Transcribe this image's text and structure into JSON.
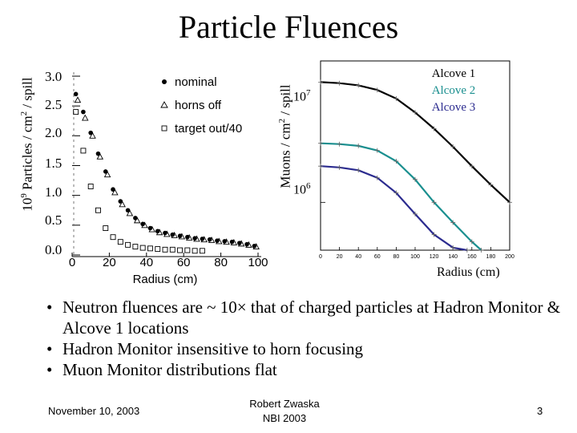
{
  "slide": {
    "title": "Particle Fluences",
    "bullets": [
      "Neutron fluences are ~ 10× that of charged particles at Hadron Monitor & Alcove 1 locations",
      "Hadron Monitor insensitive to horn focusing",
      "Muon Monitor distributions flat"
    ],
    "footer": {
      "date": "November 10, 2003",
      "author_line1": "Robert Zwaska",
      "author_line2": "NBI 2003",
      "page": "3"
    }
  },
  "chart_data": [
    {
      "type": "scatter",
      "ylabel_main": "10",
      "ylabel_sup1": "9",
      "ylabel_mid": " Particles / cm",
      "ylabel_sup2": "2",
      "ylabel_end": " / spill",
      "xlabel": "Radius (cm)",
      "xlim": [
        0,
        100
      ],
      "ylim": [
        0,
        3.0
      ],
      "xticks": [
        "0",
        "20",
        "40",
        "60",
        "80",
        "100"
      ],
      "yticks": [
        "0.0",
        "0.5",
        "1.0",
        "1.5",
        "2.0",
        "2.5",
        "3.0"
      ],
      "legend_position": "top-right",
      "series": [
        {
          "name": "nominal",
          "marker": "filled-circle",
          "x": [
            2,
            6,
            10,
            14,
            18,
            22,
            26,
            30,
            34,
            38,
            42,
            46,
            50,
            54,
            58,
            62,
            66,
            70,
            74,
            78,
            82,
            86,
            90,
            94,
            98
          ],
          "y": [
            2.7,
            2.4,
            2.05,
            1.7,
            1.4,
            1.1,
            0.9,
            0.75,
            0.62,
            0.52,
            0.45,
            0.4,
            0.37,
            0.34,
            0.32,
            0.3,
            0.28,
            0.27,
            0.26,
            0.24,
            0.23,
            0.22,
            0.2,
            0.18,
            0.15
          ]
        },
        {
          "name": "horns off",
          "marker": "open-triangle",
          "x": [
            3,
            7,
            11,
            15,
            19,
            23,
            27,
            31,
            35,
            39,
            43,
            47,
            51,
            55,
            59,
            63,
            67,
            71,
            75,
            79,
            83,
            87,
            91,
            95,
            99
          ],
          "y": [
            2.6,
            2.3,
            2.0,
            1.65,
            1.35,
            1.05,
            0.85,
            0.7,
            0.58,
            0.5,
            0.43,
            0.38,
            0.35,
            0.33,
            0.31,
            0.29,
            0.27,
            0.26,
            0.25,
            0.23,
            0.22,
            0.21,
            0.19,
            0.17,
            0.14
          ]
        },
        {
          "name": "target out/40",
          "marker": "open-square",
          "x": [
            2,
            6,
            10,
            14,
            18,
            22,
            26,
            30,
            34,
            38,
            42,
            46,
            50,
            54,
            58,
            62,
            66,
            70
          ],
          "y": [
            2.4,
            1.75,
            1.15,
            0.75,
            0.45,
            0.3,
            0.22,
            0.17,
            0.14,
            0.12,
            0.11,
            0.1,
            0.09,
            0.09,
            0.08,
            0.08,
            0.07,
            0.07
          ]
        }
      ]
    },
    {
      "type": "line",
      "ylabel_main": "Muons / cm",
      "ylabel_sup": "2",
      "ylabel_end": " / spill",
      "xlabel": "Radius (cm)",
      "xlim": [
        0,
        200
      ],
      "ylim_log": [
        400000,
        15000000
      ],
      "log_y": true,
      "xticks": [
        "0",
        "20",
        "40",
        "60",
        "80",
        "100",
        "120",
        "140",
        "160",
        "180",
        "200"
      ],
      "yticks": [
        {
          "base": "10",
          "exp": "7",
          "value": 10000000
        },
        {
          "base": "10",
          "exp": "6",
          "value": 1000000
        }
      ],
      "legend_position": "top-right",
      "series": [
        {
          "name": "Alcove 1",
          "color": "#000000",
          "x": [
            0,
            20,
            40,
            60,
            80,
            100,
            120,
            140,
            160,
            180,
            200
          ],
          "y": [
            10000000,
            9800000,
            9400000,
            8600000,
            7300000,
            5600000,
            4100000,
            2900000,
            2000000,
            1400000,
            1000000
          ]
        },
        {
          "name": "Alcove 2",
          "color": "#1a8f8f",
          "x": [
            0,
            20,
            40,
            60,
            80,
            100,
            120,
            140,
            160,
            170
          ],
          "y": [
            3100000,
            3050000,
            2950000,
            2700000,
            2200000,
            1550000,
            1000000,
            680000,
            470000,
            400000
          ]
        },
        {
          "name": "Alcove 3",
          "color": "#2b2b8f",
          "x": [
            0,
            20,
            40,
            60,
            80,
            100,
            120,
            140,
            155
          ],
          "y": [
            2000000,
            1950000,
            1850000,
            1600000,
            1200000,
            800000,
            540000,
            420000,
            400000
          ]
        }
      ]
    }
  ]
}
